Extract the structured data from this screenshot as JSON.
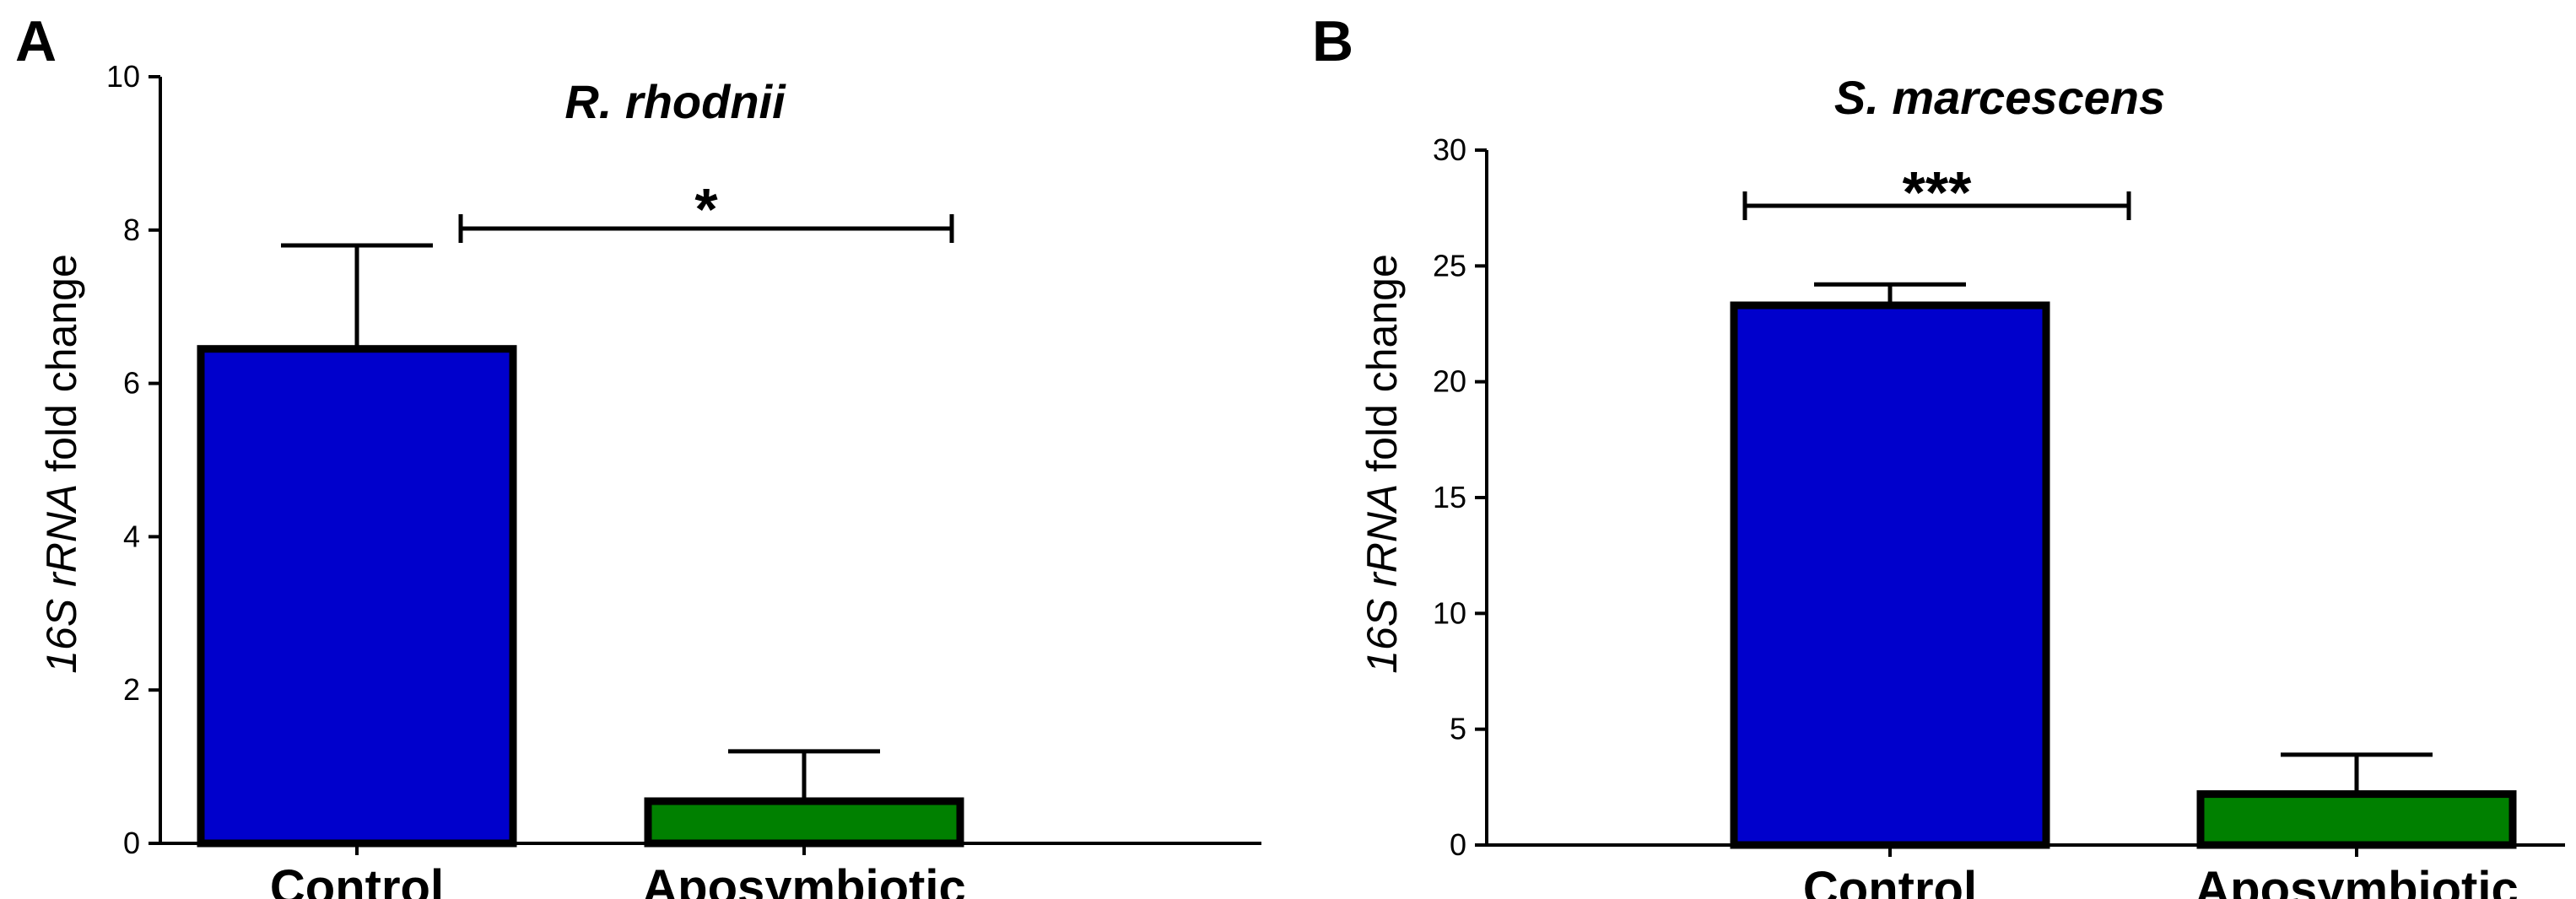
{
  "chart_data": [
    {
      "type": "bar",
      "panel": "A",
      "title": "R. rhodnii",
      "ylabel_italic": "16S rRNA",
      "ylabel_rest": " fold change",
      "xlabel": "",
      "ylim": [
        0,
        10
      ],
      "yticks": [
        0,
        2,
        4,
        6,
        8,
        10
      ],
      "categories": [
        "Control",
        "Aposymbiotic"
      ],
      "values": [
        6.45,
        0.55
      ],
      "errors": [
        1.35,
        0.65
      ],
      "colors": [
        "#0000cc",
        "#008000"
      ],
      "significance": "*"
    },
    {
      "type": "bar",
      "panel": "B",
      "title": "S. marcescens",
      "ylabel_italic": "16S rRNA",
      "ylabel_rest": " fold change",
      "xlabel": "",
      "ylim": [
        0,
        30
      ],
      "yticks": [
        0,
        5,
        10,
        15,
        20,
        25,
        30
      ],
      "categories": [
        "Control",
        "Aposymbiotic"
      ],
      "values": [
        23.3,
        2.2
      ],
      "errors": [
        0.9,
        1.7
      ],
      "colors": [
        "#0000cc",
        "#008000"
      ],
      "significance": "***"
    }
  ]
}
